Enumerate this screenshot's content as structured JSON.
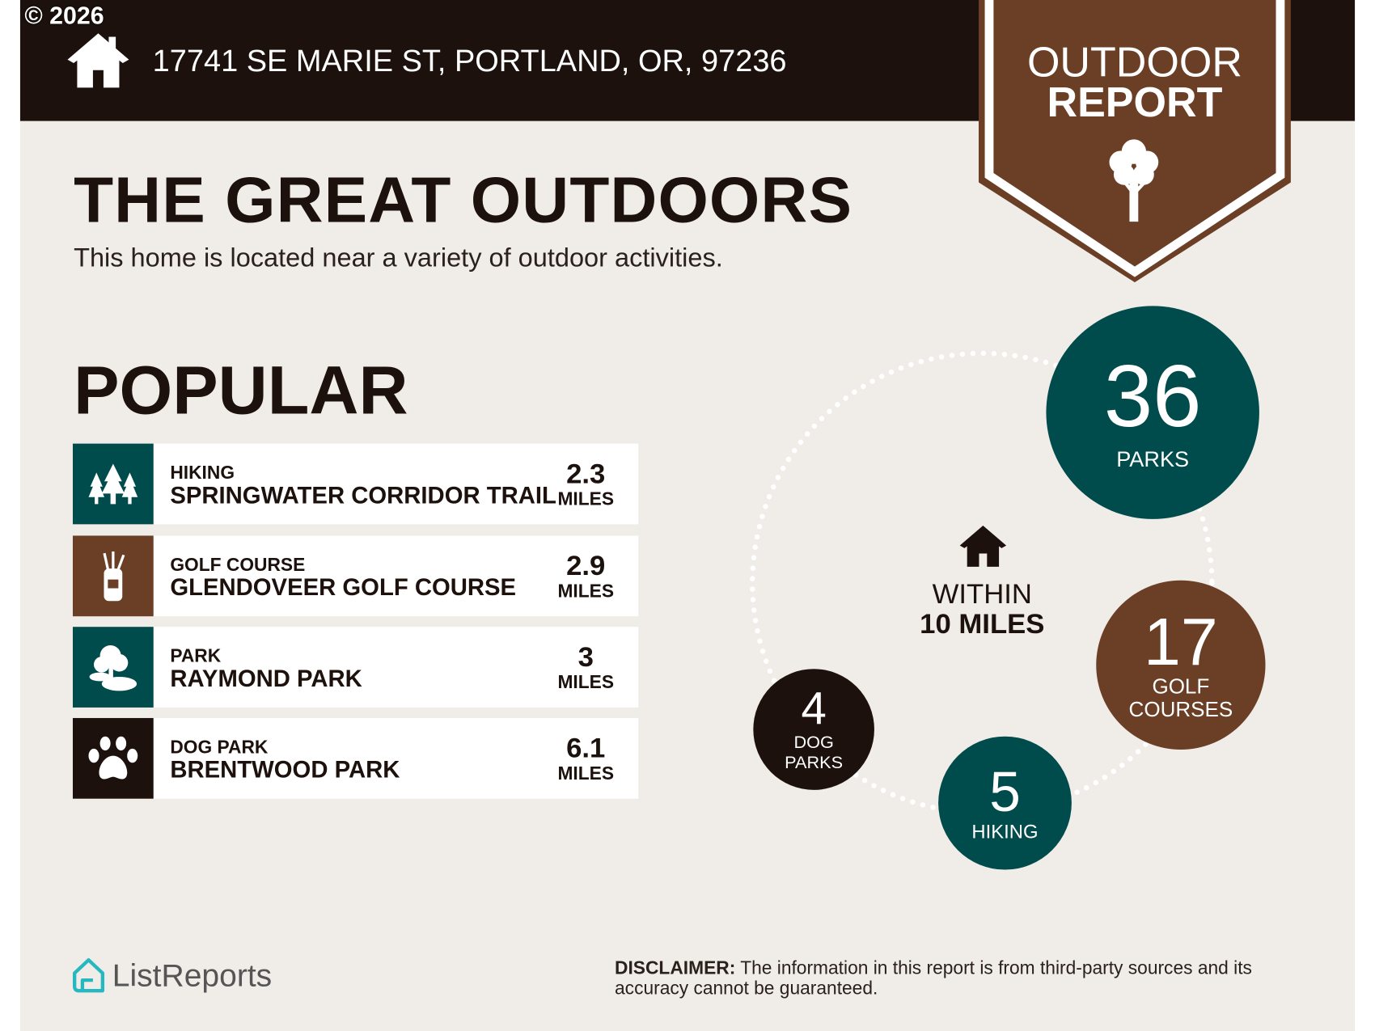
{
  "copyright": "© 2026",
  "header": {
    "address": "17741 SE MARIE ST, PORTLAND, OR, 97236"
  },
  "badge": {
    "line1": "OUTDOOR",
    "line2": "REPORT"
  },
  "main": {
    "title": "THE GREAT OUTDOORS",
    "subtitle": "This home is located near a variety of outdoor activities.",
    "popular_heading": "POPULAR"
  },
  "popular": [
    {
      "category": "HIKING",
      "name": "SPRINGWATER CORRIDOR TRAIL",
      "distance": "2.3",
      "unit": "MILES",
      "icon": "trees-icon",
      "color": "#004b4b"
    },
    {
      "category": "GOLF COURSE",
      "name": "GLENDOVEER GOLF COURSE",
      "distance": "2.9",
      "unit": "MILES",
      "icon": "golf-bag-icon",
      "color": "#6b3e26"
    },
    {
      "category": "PARK",
      "name": "RAYMOND PARK",
      "distance": "3",
      "unit": "MILES",
      "icon": "park-icon",
      "color": "#004b4b"
    },
    {
      "category": "DOG PARK",
      "name": "BRENTWOOD PARK",
      "distance": "6.1",
      "unit": "MILES",
      "icon": "paw-icon",
      "color": "#1c110c"
    }
  ],
  "summary": {
    "within_line1": "WITHIN",
    "within_line2": "10 MILES",
    "counts": [
      {
        "value": "36",
        "label": "PARKS",
        "color": "#004b4b"
      },
      {
        "value": "17",
        "label": "GOLF COURSES",
        "color": "#6b3e26"
      },
      {
        "value": "5",
        "label": "HIKING",
        "color": "#004b4b"
      },
      {
        "value": "4",
        "label": "DOG PARKS",
        "color": "#1c110c"
      }
    ]
  },
  "footer": {
    "brand": "ListReports",
    "disclaimer_label": "DISCLAIMER:",
    "disclaimer_text": " The information in this report is from third-party sources and its accuracy cannot be guaranteed."
  }
}
